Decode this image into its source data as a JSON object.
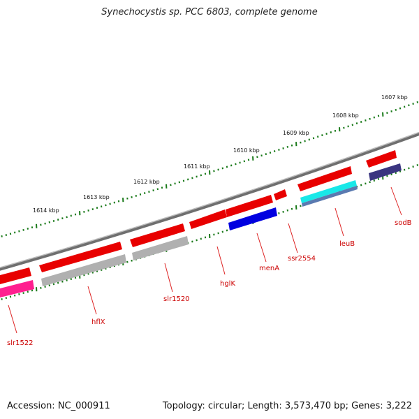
{
  "title": "Synechocystis sp. PCC 6803, complete genome",
  "footer": {
    "accession": "Accession: NC_000911",
    "topology": "Topology: circular; Length: 3,573,470 bp; Genes: 3,222"
  },
  "scale_labels": [
    "1607 kbp",
    "1608 kbp",
    "1609 kbp",
    "1610 kbp",
    "1611 kbp",
    "1612 kbp",
    "1613 kbp",
    "1614 kbp"
  ],
  "gene_labels": [
    "sodB",
    "leuB",
    "ssr2554",
    "menA",
    "hglK",
    "slr1520",
    "hflX",
    "slr1522"
  ],
  "colors": {
    "backbone": "#7a7a7a",
    "ticks": "#1a7a1a",
    "gene_red": "#e80000",
    "gene_pink": "#ff1f8f",
    "gene_gray": "#b0b0b0",
    "gene_blue": "#0000e0",
    "gene_cyan": "#18e8e8",
    "gene_steel": "#5a7ab0",
    "gene_navy": "#3a3580",
    "label": "#cc0000"
  }
}
